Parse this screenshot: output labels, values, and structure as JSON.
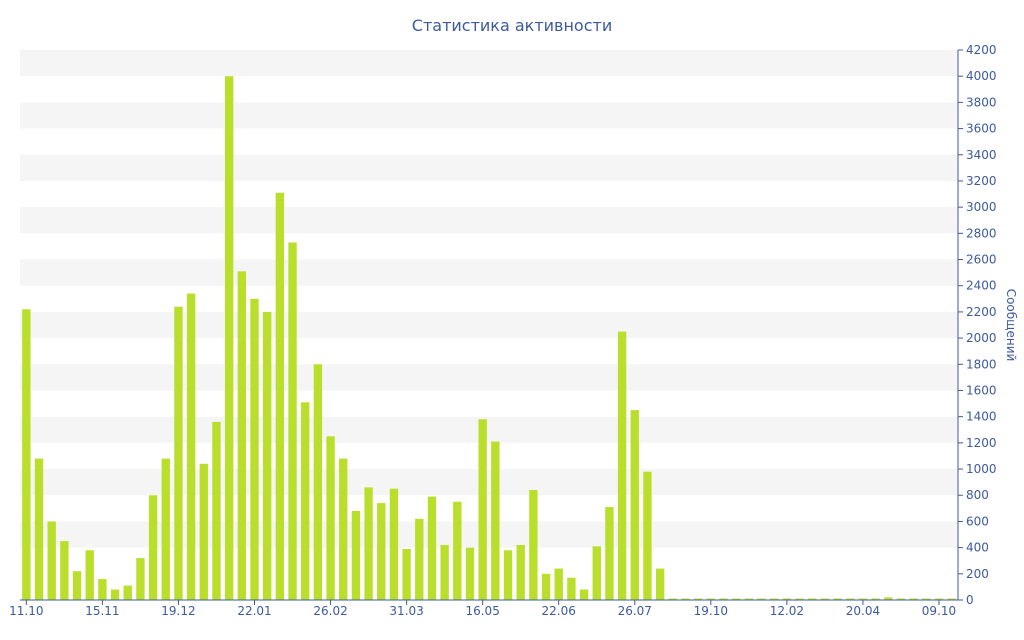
{
  "chart_data": {
    "type": "bar",
    "title": "Статистика активности",
    "xlabel": "",
    "ylabel": "Сообщений",
    "ylim": [
      0,
      4200
    ],
    "y_ticks": [
      0,
      200,
      400,
      600,
      800,
      1000,
      1200,
      1400,
      1600,
      1800,
      2000,
      2200,
      2400,
      2600,
      2800,
      3000,
      3200,
      3400,
      3600,
      3800,
      4000,
      4200
    ],
    "x_tick_labels": [
      {
        "index": 0,
        "label": "11.10"
      },
      {
        "index": 6,
        "label": "15.11"
      },
      {
        "index": 12,
        "label": "19.12"
      },
      {
        "index": 18,
        "label": "22.01"
      },
      {
        "index": 24,
        "label": "26.02"
      },
      {
        "index": 30,
        "label": "31.03"
      },
      {
        "index": 36,
        "label": "16.05"
      },
      {
        "index": 42,
        "label": "22.06"
      },
      {
        "index": 48,
        "label": "26.07"
      },
      {
        "index": 54,
        "label": "19.10"
      },
      {
        "index": 60,
        "label": "12.02"
      },
      {
        "index": 66,
        "label": "20.04"
      },
      {
        "index": 72,
        "label": "09.10"
      }
    ],
    "values": [
      2220,
      1080,
      600,
      450,
      220,
      380,
      160,
      80,
      110,
      320,
      800,
      1080,
      2240,
      2340,
      1040,
      1360,
      4000,
      2510,
      2300,
      2200,
      3110,
      2730,
      1510,
      1800,
      1250,
      1080,
      680,
      860,
      740,
      850,
      390,
      620,
      790,
      420,
      750,
      400,
      1380,
      1210,
      380,
      420,
      840,
      200,
      240,
      170,
      80,
      410,
      710,
      2050,
      1450,
      980,
      240,
      10,
      10,
      10,
      10,
      10,
      10,
      10,
      10,
      10,
      10,
      10,
      10,
      10,
      10,
      10,
      10,
      10,
      20,
      10,
      10,
      10,
      10,
      10
    ],
    "grid": "alternating horizontal bands",
    "y_axis_position": "right",
    "colors": {
      "bar": "#b9df2c",
      "text": "#3d5a9e",
      "band": "#f5f5f5"
    }
  }
}
